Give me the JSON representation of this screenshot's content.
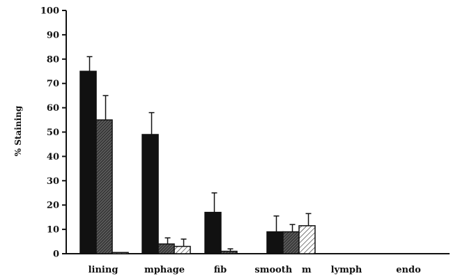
{
  "chart_data": {
    "type": "bar",
    "title": "",
    "xlabel": "",
    "ylabel": "% Staining",
    "ylim": [
      0,
      100
    ],
    "yticks": [
      "0",
      "10",
      "20",
      "30",
      "40",
      "50",
      "60",
      "70",
      "80",
      "90",
      "100"
    ],
    "categories": [
      "lining",
      "mphage",
      "fib",
      "smooth   m",
      "lymph",
      "endo"
    ],
    "grid": false,
    "legend": "none",
    "series": [
      {
        "fill": "solid",
        "color": "#111111",
        "values": [
          75,
          49,
          17,
          9,
          0,
          0
        ],
        "errors": [
          6,
          9,
          8,
          6.5,
          0,
          0
        ]
      },
      {
        "fill": "dense-hatch",
        "color": "#444444",
        "values": [
          55,
          4,
          1,
          9,
          0,
          0
        ],
        "errors": [
          10,
          2.5,
          1,
          3,
          0,
          0
        ]
      },
      {
        "fill": "light-hatch",
        "color": "#666666",
        "values": [
          0.5,
          3,
          0,
          11.5,
          0,
          0
        ],
        "errors": [
          0,
          3,
          0,
          5,
          0,
          0
        ]
      }
    ]
  }
}
